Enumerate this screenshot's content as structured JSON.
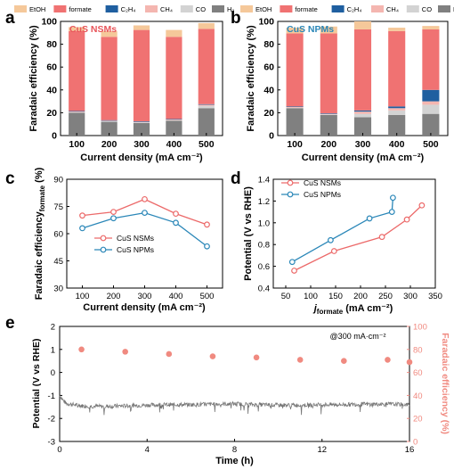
{
  "chart_data": [
    {
      "panel": "a",
      "type": "bar",
      "stacked": true,
      "annotation": "CuS NSMs",
      "xlabel": "Current density (mA cm⁻²)",
      "ylabel": "Faradaic efficiency (%)",
      "categories": [
        "100",
        "200",
        "300",
        "400",
        "500"
      ],
      "ylim": [
        0,
        100
      ],
      "yticks": [
        0,
        20,
        40,
        60,
        80,
        100
      ],
      "legend_position": "top",
      "series": [
        {
          "name": "H₂",
          "color": "#808080",
          "values": [
            20,
            12,
            11,
            13,
            24
          ]
        },
        {
          "name": "CO",
          "color": "#d3d3d3",
          "values": [
            0.5,
            0.5,
            0.5,
            0.5,
            2
          ]
        },
        {
          "name": "CH₄",
          "color": "#f4b6b0",
          "values": [
            0.5,
            0.5,
            0.5,
            0.5,
            1
          ]
        },
        {
          "name": "C₂H₄",
          "color": "#1f5fa0",
          "values": [
            0.5,
            0.5,
            0.5,
            0.5,
            0.5
          ]
        },
        {
          "name": "formate",
          "color": "#f07272",
          "values": [
            70,
            73,
            80,
            72,
            66
          ]
        },
        {
          "name": "EtOH",
          "color": "#f5c89a",
          "values": [
            3.5,
            5,
            4,
            6,
            5
          ]
        }
      ]
    },
    {
      "panel": "b",
      "type": "bar",
      "stacked": true,
      "annotation": "CuS NPMs",
      "xlabel": "Current density (mA cm⁻²)",
      "ylabel": "Faradaic efficiency (%)",
      "categories": [
        "100",
        "200",
        "300",
        "400",
        "500"
      ],
      "ylim": [
        0,
        100
      ],
      "yticks": [
        0,
        20,
        40,
        60,
        80,
        100
      ],
      "legend_position": "top",
      "series": [
        {
          "name": "H₂",
          "color": "#808080",
          "values": [
            24,
            18,
            16,
            18,
            19
          ]
        },
        {
          "name": "CO",
          "color": "#d3d3d3",
          "values": [
            0.5,
            0.5,
            3,
            4,
            8
          ]
        },
        {
          "name": "CH₄",
          "color": "#f4b6b0",
          "values": [
            0.5,
            0.5,
            2,
            2,
            3
          ]
        },
        {
          "name": "C₂H₄",
          "color": "#1f5fa0",
          "values": [
            0.5,
            0.5,
            1,
            1.5,
            10
          ]
        },
        {
          "name": "formate",
          "color": "#f07272",
          "values": [
            64,
            70,
            71,
            66,
            53
          ]
        },
        {
          "name": "EtOH",
          "color": "#f5c89a",
          "values": [
            5,
            6,
            7,
            3,
            3
          ]
        }
      ]
    },
    {
      "panel": "c",
      "type": "line",
      "xlabel": "Current density (mA cm⁻²)",
      "ylabel": "Faradaic efficiency formate (%)",
      "xlim": [
        50,
        550
      ],
      "ylim": [
        30,
        90
      ],
      "xticks": [
        100,
        200,
        300,
        400,
        500
      ],
      "yticks": [
        30,
        45,
        60,
        75,
        90
      ],
      "legend_position": "center",
      "series": [
        {
          "name": "CuS NSMs",
          "color": "#ec6a6a",
          "x": [
            100,
            200,
            300,
            400,
            500
          ],
          "y": [
            70,
            72,
            79,
            71,
            65
          ]
        },
        {
          "name": "CuS NPMs",
          "color": "#2b87b8",
          "x": [
            100,
            200,
            300,
            400,
            500
          ],
          "y": [
            63,
            68.5,
            71.5,
            66,
            53
          ]
        }
      ]
    },
    {
      "panel": "d",
      "type": "line",
      "xlabel": "j formate (mA cm⁻²)",
      "ylabel": "Potential (V vs RHE)",
      "xlim": [
        25,
        350
      ],
      "ylim": [
        0.4,
        1.4
      ],
      "xticks": [
        50,
        100,
        150,
        200,
        250,
        300,
        350
      ],
      "yticks": [
        0.4,
        0.6,
        0.8,
        1.0,
        1.2,
        1.4
      ],
      "legend_position": "top-left",
      "series": [
        {
          "name": "CuS NSMs",
          "color": "#ec6a6a",
          "x": [
            67,
            147,
            243,
            293,
            323
          ],
          "y": [
            0.56,
            0.74,
            0.87,
            1.03,
            1.16
          ]
        },
        {
          "name": "CuS NPMs",
          "color": "#2b87b8",
          "x": [
            63,
            140,
            218,
            263,
            265
          ],
          "y": [
            0.64,
            0.84,
            1.04,
            1.1,
            1.23
          ]
        }
      ]
    },
    {
      "panel": "e",
      "type": "line",
      "annotation": "@300 mA·cm⁻²",
      "xlabel": "Time (h)",
      "ylabel": "Potential (V vs RHE)",
      "ylabel_right": "Faradaic efficiency (%)",
      "xlim": [
        0,
        16
      ],
      "ylim": [
        -3,
        2
      ],
      "ylim_right": [
        0,
        100
      ],
      "xticks": [
        0,
        4,
        8,
        12,
        16
      ],
      "yticks": [
        -3,
        -2,
        -1,
        0,
        1,
        2
      ],
      "yticks_right": [
        0,
        20,
        40,
        60,
        80,
        100
      ],
      "series": [
        {
          "name": "Potential",
          "color": "#777777",
          "x": [
            0,
            0.15,
            0.3,
            1,
            2,
            3,
            4,
            5,
            6,
            7,
            8,
            9,
            10,
            11,
            12,
            13,
            14,
            15,
            16
          ],
          "y": [
            -1.0,
            -1.2,
            -1.35,
            -1.45,
            -1.48,
            -1.45,
            -1.42,
            -1.4,
            -1.4,
            -1.38,
            -1.36,
            -1.4,
            -1.42,
            -1.42,
            -1.4,
            -1.4,
            -1.38,
            -1.38,
            -1.4
          ]
        },
        {
          "name": "Faradaic efficiency",
          "axis": "right",
          "color": "#f08a80",
          "x": [
            1,
            3,
            5,
            7,
            9,
            11,
            13,
            15,
            16
          ],
          "y": [
            80,
            78,
            76,
            74,
            73,
            71,
            70,
            71,
            69
          ]
        }
      ]
    }
  ],
  "panel_labels": [
    "a",
    "b",
    "c",
    "d",
    "e"
  ],
  "legend_entries": [
    "EtOH",
    "formate",
    "C₂H₄",
    "CH₄",
    "CO",
    "H₂"
  ]
}
